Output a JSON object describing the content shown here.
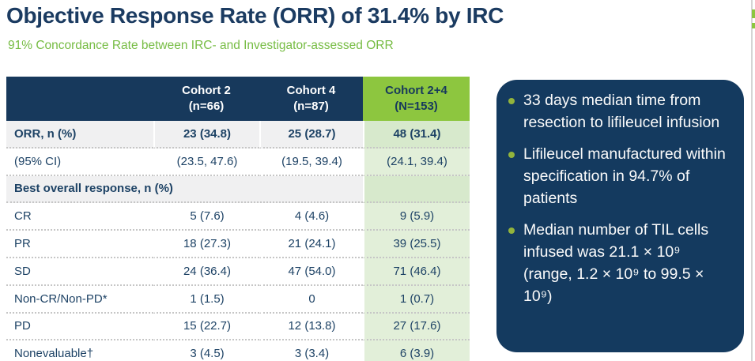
{
  "slide": {
    "title": "Objective Response Rate (ORR) of 31.4% by IRC",
    "subtitle": "91% Concordance Rate between IRC- and Investigator-assessed ORR"
  },
  "table": {
    "header": {
      "col1": "",
      "col2": "Cohort 2\n(n=66)",
      "col3": "Cohort 4\n(n=87)",
      "col4": "Cohort 2+4\n(N=153)"
    },
    "rows": [
      {
        "label": "ORR, n (%)",
        "values": [
          "23 (34.8)",
          "25 (28.7)",
          "48 (31.4)"
        ]
      },
      {
        "label": "(95% CI)",
        "values": [
          "(23.5, 47.6)",
          "(19.5, 39.4)",
          "(24.1, 39.4)"
        ]
      },
      {
        "label": "Best overall response, n (%)",
        "values": [
          "",
          "",
          ""
        ]
      },
      {
        "label": "CR",
        "values": [
          "5 (7.6)",
          "4 (4.6)",
          "9 (5.9)"
        ]
      },
      {
        "label": "PR",
        "values": [
          "18 (27.3)",
          "21 (24.1)",
          "39 (25.5)"
        ]
      },
      {
        "label": "SD",
        "values": [
          "24 (36.4)",
          "47 (54.0)",
          "71 (46.4)"
        ]
      },
      {
        "label": "Non-CR/Non-PD*",
        "values": [
          "1 (1.5)",
          "0",
          "1 (0.7)"
        ]
      },
      {
        "label": "PD",
        "values": [
          "15 (22.7)",
          "12 (13.8)",
          "27 (17.6)"
        ]
      },
      {
        "label": "Nonevaluable†",
        "values": [
          "3 (4.5)",
          "3 (3.4)",
          "6 (3.9)"
        ]
      }
    ]
  },
  "callout": {
    "bullets": [
      "33 days median time from resection to lifileucel infusion",
      "Lifileucel manufactured within specification in 94.7% of patients",
      "Median number of TIL cells infused was 21.1 × 10⁹ (range, 1.2 × 10⁹ to 99.5 × 10⁹)"
    ]
  },
  "colors": {
    "navy": "#17395c",
    "lime_header": "#8dc63f",
    "light_green_column": "#e2efd9",
    "subtitle_green": "#76bc43",
    "bullet_green": "#93b43c",
    "shaded_row": "#f0f0f1"
  }
}
